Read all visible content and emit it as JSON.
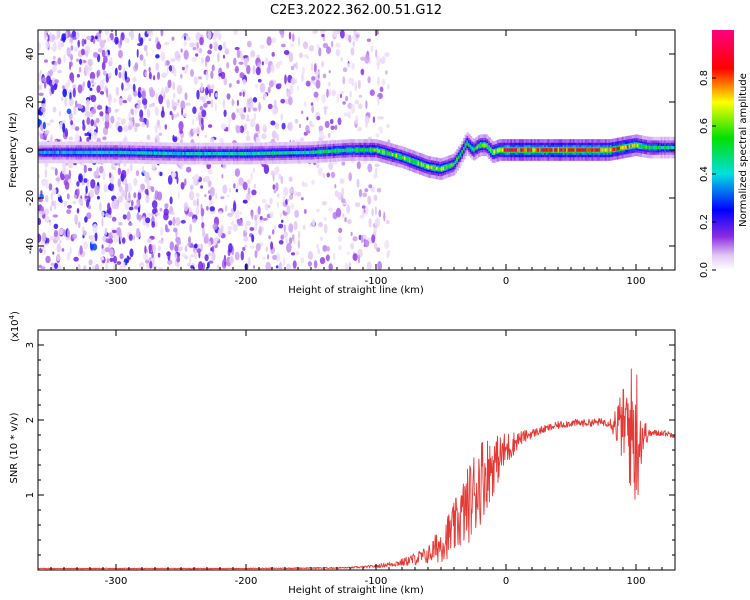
{
  "figure": {
    "title": "C2E3.2022.362.00.51.G12"
  },
  "chart_data": [
    {
      "type": "heatmap",
      "xlabel": "Height of straight line (km)",
      "ylabel": "Frequency (Hz)",
      "xlim": [
        -360,
        130
      ],
      "ylim": [
        -50,
        50
      ],
      "x_ticks": [
        -300,
        -200,
        -100,
        0,
        100
      ],
      "y_ticks": [
        -40,
        -20,
        0,
        20,
        40
      ],
      "grid": false,
      "colorbar": {
        "label": "Normalized spectral amplitude",
        "range": [
          0,
          1
        ],
        "ticks": [
          0.0,
          0.2,
          0.4,
          0.6,
          0.8
        ],
        "tick_labels": [
          "0.0",
          "0.2",
          "0.4",
          "0.6",
          "0.8"
        ],
        "colormap": "rainbow (white-lavender low, purple, blue, cyan, green, yellow, red, magenta high)"
      },
      "ridge": {
        "description": "spectral peak frequency vs height",
        "x": [
          -360,
          -300,
          -250,
          -200,
          -150,
          -120,
          -100,
          -80,
          -60,
          -50,
          -40,
          -35,
          -30,
          -25,
          -20,
          -15,
          -10,
          -5,
          0,
          10,
          50,
          80,
          90,
          100,
          110,
          130
        ],
        "y": [
          -1,
          -1,
          -1.5,
          -1.5,
          -1,
          0,
          0,
          -3,
          -7,
          -8,
          -6,
          -2,
          3,
          0,
          2,
          2,
          -1,
          0,
          0,
          0,
          0,
          0,
          1,
          2,
          1,
          1
        ],
        "peak_amplitude": [
          0.35,
          0.42,
          0.4,
          0.42,
          0.45,
          0.5,
          0.55,
          0.6,
          0.62,
          0.6,
          0.55,
          0.5,
          0.55,
          0.5,
          0.6,
          0.55,
          0.6,
          0.75,
          0.85,
          0.85,
          0.85,
          0.82,
          0.78,
          0.65,
          0.5,
          0.45
        ]
      },
      "noise_extent_x": [
        -360,
        -90
      ]
    },
    {
      "type": "line",
      "xlabel": "Height of straight line (km)",
      "ylabel": "SNR (10 * v/v)",
      "y_multiplier": "(x10",
      "y_multiplier_exp": "4",
      "y_multiplier_close": ")",
      "xlim": [
        -360,
        130
      ],
      "ylim": [
        0,
        3.2
      ],
      "x_ticks": [
        -300,
        -200,
        -100,
        0,
        100
      ],
      "y_ticks": [
        1,
        2,
        3
      ],
      "grid": false,
      "series": [
        {
          "color": "#e53935",
          "x": [
            -360,
            -300,
            -200,
            -120,
            -100,
            -80,
            -60,
            -50,
            -40,
            -30,
            -25,
            -20,
            -15,
            -10,
            -5,
            0,
            10,
            20,
            30,
            40,
            50,
            60,
            70,
            80,
            90,
            95,
            100,
            105,
            110,
            120,
            130
          ],
          "y": [
            0.02,
            0.02,
            0.02,
            0.03,
            0.05,
            0.1,
            0.2,
            0.35,
            0.55,
            0.85,
            1.0,
            1.2,
            1.3,
            1.4,
            1.5,
            1.6,
            1.75,
            1.82,
            1.88,
            1.93,
            1.96,
            1.96,
            1.97,
            1.97,
            1.93,
            1.9,
            1.8,
            1.8,
            1.82,
            1.83,
            1.8
          ],
          "fluctuation_amp": [
            0.005,
            0.005,
            0.005,
            0.01,
            0.02,
            0.05,
            0.12,
            0.25,
            0.35,
            0.5,
            0.6,
            0.6,
            0.5,
            0.4,
            0.3,
            0.25,
            0.1,
            0.06,
            0.05,
            0.05,
            0.05,
            0.05,
            0.05,
            0.06,
            0.5,
            0.8,
            1.1,
            0.3,
            0.05,
            0.04,
            0.04
          ]
        }
      ]
    }
  ]
}
